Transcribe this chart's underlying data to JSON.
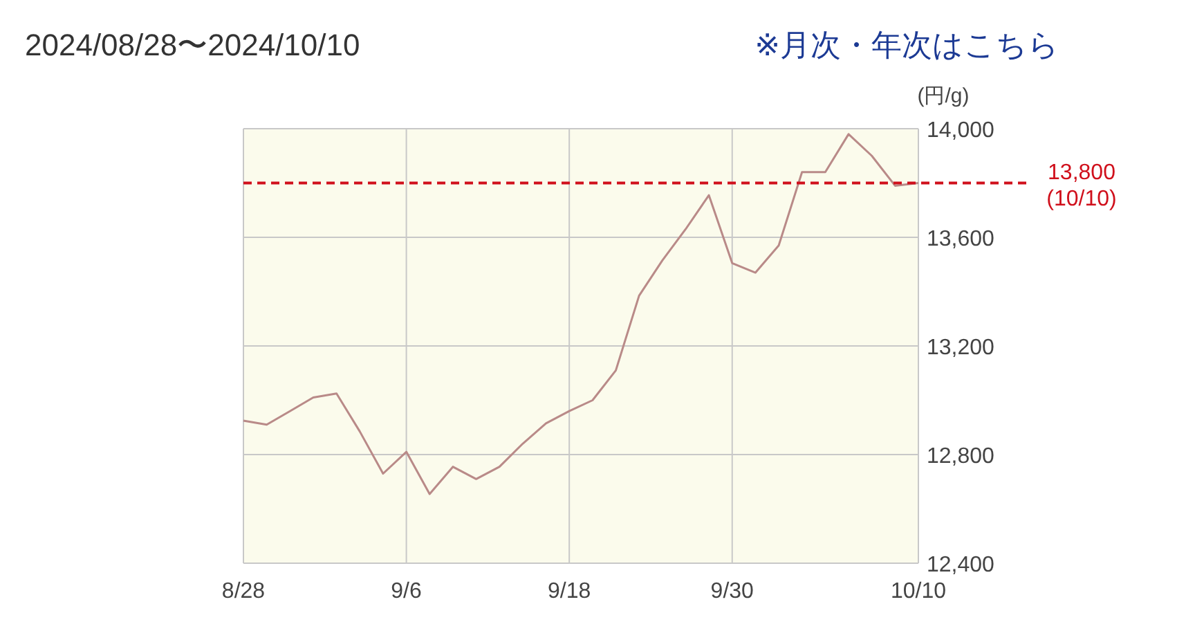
{
  "chart_data": {
    "type": "line",
    "title": "2024/08/28〜2024/10/10",
    "annotations": [
      "※月次・年次はこちら"
    ],
    "ylabel": "(円/g)",
    "categories": [
      "8/28",
      null,
      null,
      null,
      null,
      null,
      null,
      "9/6",
      null,
      null,
      null,
      null,
      null,
      null,
      "9/18",
      null,
      null,
      null,
      null,
      null,
      null,
      "9/30",
      null,
      null,
      null,
      null,
      null,
      null,
      null,
      "10/10"
    ],
    "series": [
      {
        "color": "#b98a88",
        "values": [
          12925,
          12910,
          12960,
          13010,
          13025,
          12885,
          12730,
          12810,
          12655,
          12755,
          12710,
          12755,
          12840,
          12915,
          12960,
          13000,
          13110,
          13385,
          13515,
          13630,
          13755,
          13505,
          13470,
          13570,
          13840,
          13840,
          13980,
          13900,
          13790,
          13800
        ]
      }
    ],
    "ylim": [
      12400,
      14000
    ],
    "yticks": [
      {
        "value": 12400,
        "label": "12,400"
      },
      {
        "value": 12800,
        "label": "12,800"
      },
      {
        "value": 13200,
        "label": "13,200"
      },
      {
        "value": 13600,
        "label": "13,600"
      },
      {
        "value": 14000,
        "label": "14,000"
      }
    ],
    "grid": true,
    "ref_lines": [
      {
        "axis": "y",
        "value": 13800,
        "label": "13,800\n(10/10)",
        "color": "#d0101c",
        "line_style": "dashed"
      }
    ]
  }
}
